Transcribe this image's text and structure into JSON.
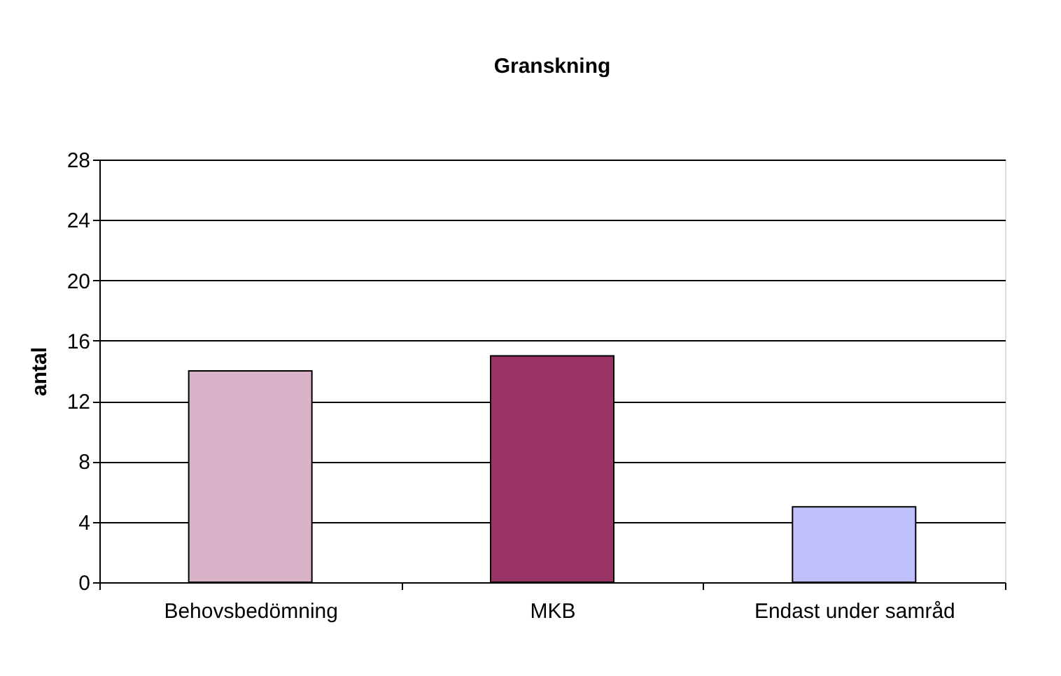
{
  "chart_data": {
    "type": "bar",
    "title": "Granskning",
    "ylabel": "antal",
    "categories": [
      "Behovsbedömning",
      "MKB",
      "Endast under samråd"
    ],
    "values": [
      14,
      15,
      5
    ],
    "colors": [
      "#d9b3c8",
      "#993366",
      "#c0c0ff"
    ],
    "ylim": [
      0,
      28
    ],
    "yticks": [
      0,
      4,
      8,
      12,
      16,
      20,
      24,
      28
    ],
    "grid": "y",
    "legend": false
  }
}
